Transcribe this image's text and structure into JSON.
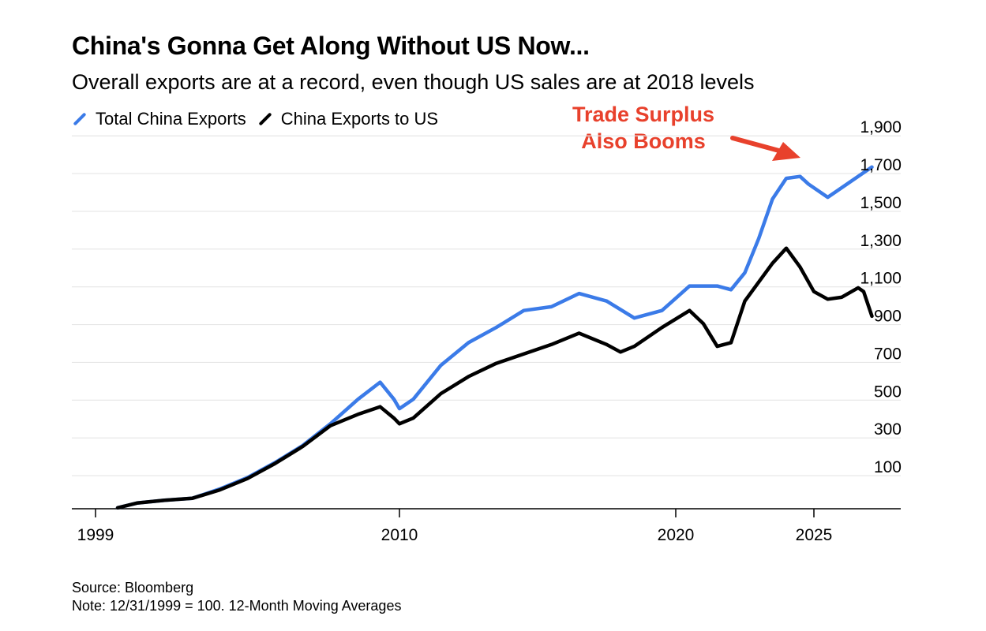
{
  "header": {
    "title": "China's Gonna Get Along Without US Now...",
    "subtitle": "Overall exports are at a record, even though US sales are at 2018 levels"
  },
  "annotation": {
    "line1": "Trade Surplus",
    "line2": "Also Booms",
    "color": "#e8412c"
  },
  "footer": {
    "source": "Source: Bloomberg",
    "note": "Note: 12/31/1999 = 100. 12-Month Moving Averages"
  },
  "chart_data": {
    "type": "line",
    "title": "China's Gonna Get Along Without US Now...",
    "subtitle": "Overall exports are at a record, even though US sales are at 2018 levels",
    "xlabel": "",
    "ylabel": "",
    "xlim": [
      1999,
      2028
    ],
    "ylim": [
      0,
      1900
    ],
    "x_ticks": [
      1999,
      2010,
      2020,
      2025
    ],
    "x_tick_labels": [
      "1999",
      "2010",
      "2020",
      "2025"
    ],
    "y_ticks": [
      100,
      300,
      500,
      700,
      900,
      1100,
      1300,
      1500,
      1700,
      1900
    ],
    "y_tick_labels": [
      "100",
      "300",
      "500",
      "700",
      "900",
      "1,100",
      "1,300",
      "1,500",
      "1,700",
      "1,900"
    ],
    "grid": true,
    "legend_position": "top-left",
    "series": [
      {
        "name": "Total China Exports",
        "color": "#3b7be8",
        "points": [
          [
            1999.8,
            5
          ],
          [
            2000.5,
            30
          ],
          [
            2001.5,
            45
          ],
          [
            2002.5,
            55
          ],
          [
            2003.5,
            105
          ],
          [
            2004.5,
            165
          ],
          [
            2005.5,
            245
          ],
          [
            2006.5,
            335
          ],
          [
            2007.5,
            450
          ],
          [
            2008.5,
            580
          ],
          [
            2009.3,
            670
          ],
          [
            2009.8,
            580
          ],
          [
            2010.0,
            530
          ],
          [
            2010.5,
            580
          ],
          [
            2011.5,
            760
          ],
          [
            2012.5,
            880
          ],
          [
            2013.5,
            960
          ],
          [
            2014.5,
            1050
          ],
          [
            2015.5,
            1070
          ],
          [
            2016.5,
            1140
          ],
          [
            2017.5,
            1100
          ],
          [
            2018.5,
            1010
          ],
          [
            2019.5,
            1050
          ],
          [
            2020.5,
            1180
          ],
          [
            2021.0,
            1180
          ],
          [
            2021.5,
            1180
          ],
          [
            2022.0,
            1160
          ],
          [
            2022.5,
            1250
          ],
          [
            2023.0,
            1430
          ],
          [
            2023.5,
            1640
          ],
          [
            2024.0,
            1750
          ],
          [
            2024.5,
            1760
          ],
          [
            2024.8,
            1720
          ],
          [
            2025.5,
            1650
          ],
          [
            2026.0,
            1700
          ],
          [
            2026.8,
            1780
          ],
          [
            2027.1,
            1810
          ]
        ]
      },
      {
        "name": "China Exports to US",
        "color": "#000000",
        "points": [
          [
            1999.8,
            5
          ],
          [
            2000.5,
            30
          ],
          [
            2001.5,
            45
          ],
          [
            2002.5,
            55
          ],
          [
            2003.5,
            100
          ],
          [
            2004.5,
            160
          ],
          [
            2005.5,
            240
          ],
          [
            2006.5,
            330
          ],
          [
            2007.5,
            440
          ],
          [
            2008.5,
            500
          ],
          [
            2009.3,
            540
          ],
          [
            2009.8,
            480
          ],
          [
            2010.0,
            450
          ],
          [
            2010.5,
            480
          ],
          [
            2011.5,
            610
          ],
          [
            2012.5,
            700
          ],
          [
            2013.5,
            770
          ],
          [
            2014.5,
            820
          ],
          [
            2015.5,
            870
          ],
          [
            2016.5,
            930
          ],
          [
            2017.5,
            870
          ],
          [
            2018.0,
            830
          ],
          [
            2018.5,
            860
          ],
          [
            2019.5,
            960
          ],
          [
            2020.5,
            1050
          ],
          [
            2021.0,
            980
          ],
          [
            2021.5,
            860
          ],
          [
            2022.0,
            880
          ],
          [
            2022.5,
            1100
          ],
          [
            2023.5,
            1300
          ],
          [
            2024.0,
            1380
          ],
          [
            2024.5,
            1280
          ],
          [
            2025.0,
            1150
          ],
          [
            2025.5,
            1110
          ],
          [
            2026.0,
            1120
          ],
          [
            2026.6,
            1170
          ],
          [
            2026.8,
            1150
          ],
          [
            2027.1,
            1020
          ]
        ]
      }
    ]
  }
}
